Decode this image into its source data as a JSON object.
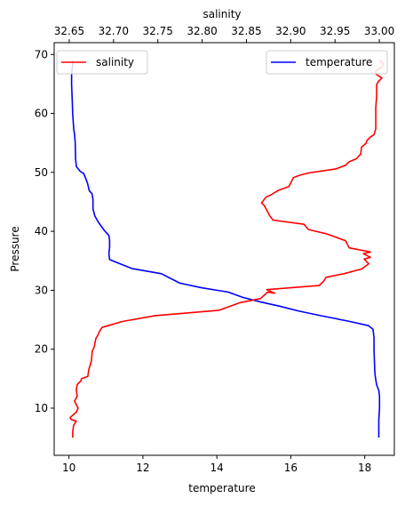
{
  "chart_data": {
    "type": "line",
    "grid": false,
    "y_axis": {
      "label": "Pressure",
      "range": [
        2,
        72
      ],
      "ticks": [
        10,
        20,
        30,
        40,
        50,
        60,
        70
      ]
    },
    "x_bottom_axis": {
      "label": "temperature",
      "range": [
        9.6,
        18.8
      ],
      "ticks": [
        10,
        12,
        14,
        16,
        18
      ]
    },
    "x_top_axis": {
      "label": "salinity",
      "range": [
        32.633,
        33.017
      ],
      "ticks": [
        32.65,
        32.7,
        32.75,
        32.8,
        32.85,
        32.9,
        32.95,
        33.0
      ],
      "tick_labels": [
        "32.65",
        "32.70",
        "32.75",
        "32.80",
        "32.85",
        "32.90",
        "32.95",
        "33.00"
      ]
    },
    "series": [
      {
        "name": "temperature",
        "axis": "bottom",
        "color": "#0000ff",
        "legend_position": "upper right",
        "points": [
          [
            18.38,
            5
          ],
          [
            18.38,
            8
          ],
          [
            18.4,
            10
          ],
          [
            18.4,
            12
          ],
          [
            18.38,
            13
          ],
          [
            18.32,
            14
          ],
          [
            18.28,
            15.5
          ],
          [
            18.27,
            16.5
          ],
          [
            18.25,
            20
          ],
          [
            18.25,
            22
          ],
          [
            18.22,
            23.4
          ],
          [
            18.1,
            24
          ],
          [
            17.6,
            24.7
          ],
          [
            16.8,
            25.7
          ],
          [
            16.2,
            26.5
          ],
          [
            15.7,
            27.3
          ],
          [
            15.2,
            28.0
          ],
          [
            14.7,
            28.8
          ],
          [
            14.3,
            29.7
          ],
          [
            13.6,
            30.4
          ],
          [
            13.0,
            31.2
          ],
          [
            12.5,
            32.8
          ],
          [
            11.7,
            33.7
          ],
          [
            11.1,
            35.2
          ],
          [
            11.08,
            36.2
          ],
          [
            11.1,
            37.3
          ],
          [
            11.1,
            38.5
          ],
          [
            11.08,
            39.3
          ],
          [
            10.95,
            40.2
          ],
          [
            10.8,
            41.5
          ],
          [
            10.7,
            42.6
          ],
          [
            10.65,
            43.8
          ],
          [
            10.65,
            45.4
          ],
          [
            10.62,
            46.4
          ],
          [
            10.55,
            46.9
          ],
          [
            10.5,
            48.2
          ],
          [
            10.4,
            49.8
          ],
          [
            10.3,
            50.2
          ],
          [
            10.2,
            51.0
          ],
          [
            10.18,
            52.2
          ],
          [
            10.17,
            55
          ],
          [
            10.15,
            56.5
          ],
          [
            10.13,
            57.2
          ],
          [
            10.1,
            60
          ],
          [
            10.09,
            62
          ],
          [
            10.08,
            63.5
          ],
          [
            10.07,
            65
          ],
          [
            10.07,
            66.5
          ],
          [
            10.08,
            67.2
          ],
          [
            10.1,
            68.1
          ],
          [
            10.1,
            69
          ]
        ]
      },
      {
        "name": "salinity",
        "axis": "top",
        "color": "#ff0000",
        "legend_position": "upper left",
        "points": [
          [
            32.654,
            5
          ],
          [
            32.654,
            6
          ],
          [
            32.655,
            7.1
          ],
          [
            32.658,
            7.8
          ],
          [
            32.652,
            8.1
          ],
          [
            32.651,
            8.4
          ],
          [
            32.654,
            8.8
          ],
          [
            32.658,
            9.3
          ],
          [
            32.66,
            10
          ],
          [
            32.656,
            11.2
          ],
          [
            32.659,
            12
          ],
          [
            32.658,
            13.1
          ],
          [
            32.659,
            14
          ],
          [
            32.663,
            14.6
          ],
          [
            32.664,
            15.0
          ],
          [
            32.671,
            15.4
          ],
          [
            32.672,
            16.5
          ],
          [
            32.675,
            18
          ],
          [
            32.676,
            19.7
          ],
          [
            32.678,
            20.3
          ],
          [
            32.68,
            21.8
          ],
          [
            32.682,
            22.3
          ],
          [
            32.684,
            23.0
          ],
          [
            32.687,
            23.7
          ],
          [
            32.71,
            24.7
          ],
          [
            32.747,
            25.7
          ],
          [
            32.819,
            26.6
          ],
          [
            32.843,
            27.9
          ],
          [
            32.866,
            28.6
          ],
          [
            32.874,
            29.7
          ],
          [
            32.882,
            29.5
          ],
          [
            32.873,
            30.1
          ],
          [
            32.932,
            30.8
          ],
          [
            32.937,
            31.5
          ],
          [
            32.94,
            32.2
          ],
          [
            32.96,
            32.8
          ],
          [
            32.98,
            33.6
          ],
          [
            32.988,
            34.5
          ],
          [
            32.983,
            35.3
          ],
          [
            32.99,
            35.6
          ],
          [
            32.982,
            36.2
          ],
          [
            32.99,
            36.5
          ],
          [
            32.966,
            37.2
          ],
          [
            32.962,
            38.4
          ],
          [
            32.94,
            39.6
          ],
          [
            32.92,
            40.3
          ],
          [
            32.915,
            41.2
          ],
          [
            32.88,
            41.9
          ],
          [
            32.876,
            42.7
          ],
          [
            32.874,
            43.3
          ],
          [
            32.87,
            44.4
          ],
          [
            32.867,
            44.8
          ],
          [
            32.872,
            45.8
          ],
          [
            32.878,
            46.2
          ],
          [
            32.882,
            46.6
          ],
          [
            32.887,
            47.0
          ],
          [
            32.898,
            47.6
          ],
          [
            32.903,
            49.1
          ],
          [
            32.91,
            49.5
          ],
          [
            32.92,
            49.9
          ],
          [
            32.951,
            50.6
          ],
          [
            32.962,
            51.2
          ],
          [
            32.966,
            51.8
          ],
          [
            32.974,
            52.3
          ],
          [
            32.979,
            53.1
          ],
          [
            32.98,
            54.3
          ],
          [
            32.985,
            54.9
          ],
          [
            32.986,
            55.4
          ],
          [
            32.99,
            56.0
          ],
          [
            32.994,
            56.4
          ],
          [
            32.996,
            57.4
          ],
          [
            32.996,
            59
          ],
          [
            32.996,
            61
          ],
          [
            32.997,
            63
          ],
          [
            32.997,
            64.9
          ],
          [
            32.999,
            65.4
          ],
          [
            33.003,
            66.0
          ],
          [
            32.996,
            66.7
          ],
          [
            32.996,
            67.2
          ],
          [
            33.003,
            67.9
          ],
          [
            33.005,
            68.4
          ],
          [
            33.0,
            69.0
          ]
        ]
      }
    ]
  }
}
